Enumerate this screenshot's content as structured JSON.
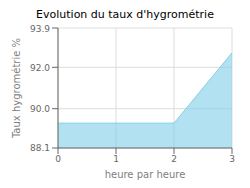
{
  "chart_data": {
    "type": "area",
    "title": "Evolution du taux d'hygrométrie",
    "xlabel": "heure par heure",
    "ylabel": "Taux hygrométrie %",
    "x": [
      0,
      2,
      3
    ],
    "values": [
      89.3,
      89.3,
      92.7
    ],
    "color": "#7ecfe8",
    "xlim": [
      0,
      3
    ],
    "ylim": [
      88.1,
      93.9
    ],
    "xticks": [
      0,
      1,
      2,
      3
    ],
    "yticks": [
      88.1,
      {
        "value": 90,
        "label": "90.0"
      },
      {
        "value": 92,
        "label": "92.0"
      },
      93.9
    ],
    "grid": true
  }
}
